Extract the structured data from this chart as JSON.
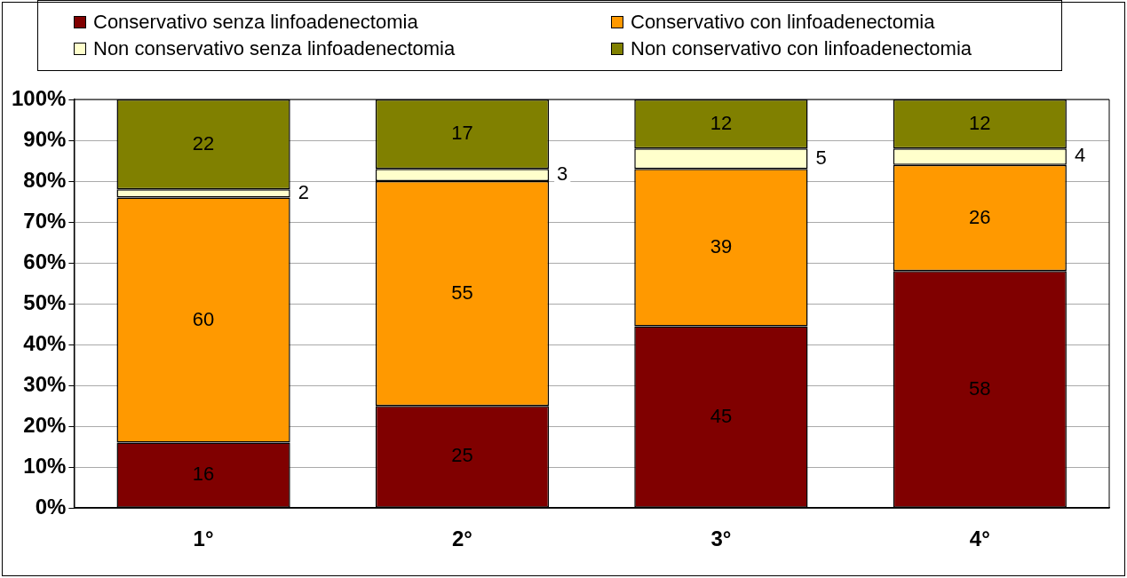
{
  "chart_data": {
    "type": "bar",
    "stacked": true,
    "categories": [
      "1°",
      "2°",
      "3°",
      "4°"
    ],
    "series": [
      {
        "name": "Conservativo senza linfoadenectomia",
        "color": "#800000",
        "values": [
          16,
          25,
          44.5,
          58
        ],
        "value_labels": [
          "16",
          "25",
          "45",
          "58"
        ]
      },
      {
        "name": "Conservativo con linfoadenectomia",
        "color": "#ff9900",
        "values": [
          60,
          55,
          38.5,
          26
        ],
        "value_labels": [
          "60",
          "55",
          "39",
          "26"
        ]
      },
      {
        "name": "Non conservativo senza linfoadenectomia",
        "color": "#ffffcc",
        "values": [
          2,
          3,
          5,
          4
        ],
        "value_labels": [
          "2",
          "3",
          "5",
          "4"
        ]
      },
      {
        "name": "Non conservativo con linfoadenectomia",
        "color": "#808000",
        "values": [
          22,
          17,
          12,
          12
        ],
        "value_labels": [
          "22",
          "17",
          "12",
          "12"
        ]
      }
    ],
    "ylim": [
      0,
      100
    ],
    "yticks": [
      {
        "value": 0,
        "label": "0%"
      },
      {
        "value": 10,
        "label": "10%"
      },
      {
        "value": 20,
        "label": "20%"
      },
      {
        "value": 30,
        "label": "30%"
      },
      {
        "value": 40,
        "label": "40%"
      },
      {
        "value": 50,
        "label": "50%"
      },
      {
        "value": 60,
        "label": "60%"
      },
      {
        "value": 70,
        "label": "70%"
      },
      {
        "value": 80,
        "label": "80%"
      },
      {
        "value": 90,
        "label": "90%"
      },
      {
        "value": 100,
        "label": "100%"
      }
    ],
    "grid": "y",
    "legend": "top"
  }
}
